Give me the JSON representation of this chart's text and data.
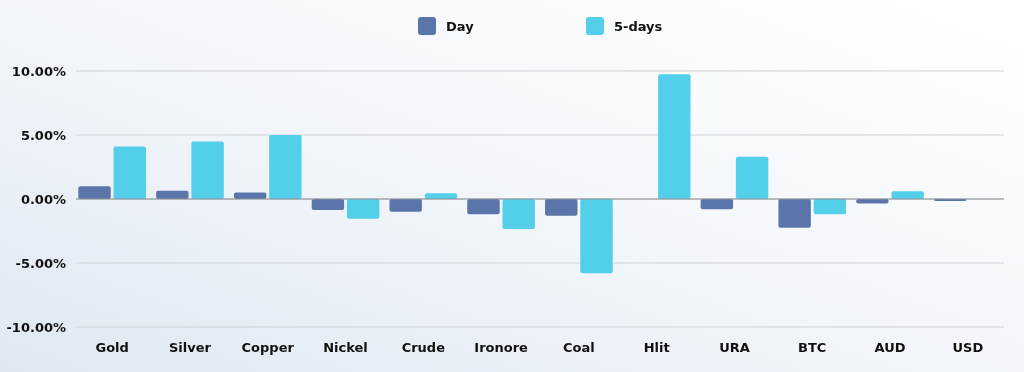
{
  "chart_data": {
    "type": "bar",
    "categories": [
      "Gold",
      "Silver",
      "Copper",
      "Nickel",
      "Crude",
      "Ironore",
      "Coal",
      "Hlit",
      "URA",
      "BTC",
      "AUD",
      "USD"
    ],
    "series": [
      {
        "name": "Day",
        "color": "#5a75a9",
        "values": [
          1.0,
          0.65,
          0.5,
          -0.85,
          -1.0,
          -1.2,
          -1.3,
          0,
          -0.8,
          -2.25,
          -0.35,
          -0.15
        ]
      },
      {
        "name": "5-days",
        "color": "#53cfea",
        "values": [
          4.1,
          4.5,
          5.0,
          -1.55,
          0.45,
          -2.35,
          -5.8,
          9.75,
          3.3,
          -1.2,
          0.6,
          0
        ]
      }
    ],
    "ylim": [
      -10,
      10
    ],
    "yticks": [
      {
        "value": -10,
        "label": "-10.00%"
      },
      {
        "value": -5,
        "label": "-5.00%"
      },
      {
        "value": 0,
        "label": "0.00%"
      },
      {
        "value": 5,
        "label": "5.00%"
      },
      {
        "value": 10,
        "label": "10.00%"
      }
    ],
    "grid": "y",
    "legend": "top"
  }
}
